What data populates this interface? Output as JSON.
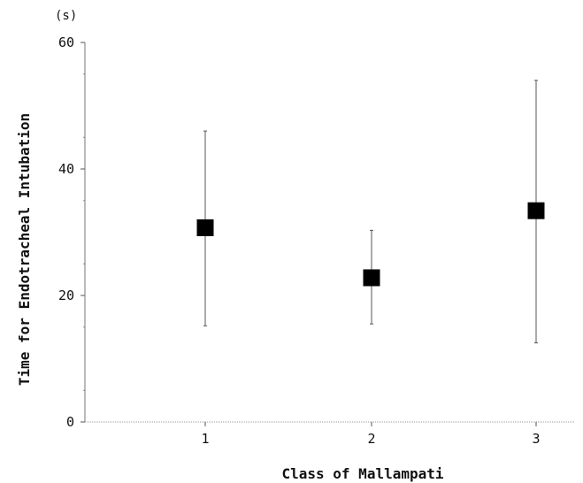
{
  "chart_data": {
    "type": "scatter",
    "unit_label": "(s)",
    "xlabel": "Class of Mallampati",
    "ylabel": "Time for Endotracheal Intubation",
    "categories": [
      "1",
      "2",
      "3"
    ],
    "ylim": [
      0,
      60
    ],
    "yticks": [
      0,
      20,
      40,
      60
    ],
    "grid": false,
    "legend": "none",
    "series": [
      {
        "points": [
          {
            "x": "1",
            "mean": 30.7,
            "low": 15.2,
            "high": 46.0
          },
          {
            "x": "2",
            "mean": 22.8,
            "low": 15.5,
            "high": 30.3
          },
          {
            "x": "3",
            "mean": 33.4,
            "low": 12.5,
            "high": 54.0
          }
        ]
      }
    ],
    "marker_color": "#000000",
    "line_color": "#555555"
  }
}
